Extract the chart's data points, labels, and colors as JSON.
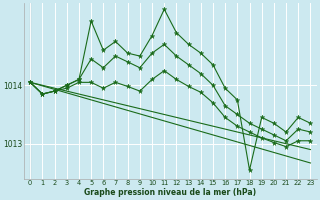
{
  "title": "Graphe pression niveau de la mer (hPa)",
  "background_color": "#cce9f0",
  "grid_color": "#ffffff",
  "line_color": "#1a6b1a",
  "marker_color": "#1a6b1a",
  "x_labels": [
    "0",
    "1",
    "2",
    "3",
    "4",
    "5",
    "6",
    "7",
    "8",
    "9",
    "10",
    "11",
    "12",
    "13",
    "14",
    "15",
    "16",
    "17",
    "18",
    "19",
    "20",
    "21",
    "22",
    "23"
  ],
  "yticks": [
    1013,
    1014
  ],
  "ylim": [
    1012.4,
    1015.4
  ],
  "xlim": [
    -0.5,
    23.5
  ],
  "series_spiky": [
    1014.05,
    1013.85,
    1013.9,
    1014.0,
    1014.1,
    1015.1,
    1014.6,
    1014.75,
    1014.55,
    1014.5,
    1014.85,
    1015.3,
    1014.9,
    1014.7,
    1014.55,
    1014.35,
    1013.95,
    1013.75,
    1012.55,
    1013.45,
    1013.35,
    1013.2,
    1013.45,
    1013.35
  ],
  "series_mid": [
    1014.05,
    1013.85,
    1013.9,
    1014.0,
    1014.1,
    1014.45,
    1014.3,
    1014.5,
    1014.4,
    1014.3,
    1014.55,
    1014.7,
    1014.5,
    1014.35,
    1014.2,
    1014.0,
    1013.65,
    1013.5,
    1013.35,
    1013.25,
    1013.15,
    1013.05,
    1013.25,
    1013.2
  ],
  "series_smooth": [
    1014.05,
    1013.85,
    1013.9,
    1013.95,
    1014.05,
    1014.05,
    1013.95,
    1014.05,
    1013.98,
    1013.9,
    1014.1,
    1014.25,
    1014.1,
    1013.98,
    1013.88,
    1013.7,
    1013.45,
    1013.3,
    1013.2,
    1013.1,
    1013.02,
    1012.95,
    1013.05,
    1013.05
  ],
  "series_linear1": [
    1014.05,
    1013.99,
    1013.93,
    1013.87,
    1013.81,
    1013.75,
    1013.69,
    1013.63,
    1013.57,
    1013.51,
    1013.45,
    1013.39,
    1013.33,
    1013.27,
    1013.21,
    1013.15,
    1013.09,
    1013.03,
    1012.97,
    1012.91,
    1012.85,
    1012.79,
    1012.73,
    1012.67
  ],
  "series_linear2": [
    1014.05,
    1014.0,
    1013.95,
    1013.9,
    1013.85,
    1013.8,
    1013.75,
    1013.7,
    1013.65,
    1013.6,
    1013.55,
    1013.5,
    1013.45,
    1013.4,
    1013.35,
    1013.3,
    1013.25,
    1013.2,
    1013.15,
    1013.1,
    1013.05,
    1013.0,
    1012.95,
    1012.9
  ]
}
